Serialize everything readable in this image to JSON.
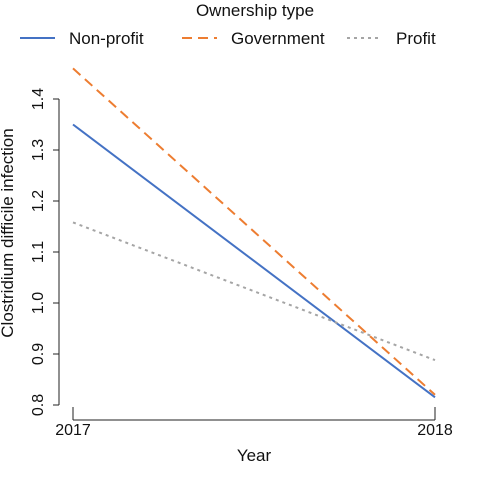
{
  "chart_data": {
    "type": "line",
    "title": "",
    "xlabel": "Year",
    "ylabel": "Clostridium difficile infection",
    "x": [
      "2017",
      "2018"
    ],
    "ylim": [
      0.8,
      1.45
    ],
    "yticks": [
      "0.8",
      "0.9",
      "1.0",
      "1.1",
      "1.2",
      "1.3",
      "1.4"
    ],
    "legend": {
      "title": "Ownership type",
      "position": "top"
    },
    "series": [
      {
        "name": "Non-profit",
        "values": [
          1.35,
          0.815
        ],
        "color": "#4472C4",
        "style": "solid"
      },
      {
        "name": "Government",
        "values": [
          1.46,
          0.82
        ],
        "color": "#ED7D31",
        "style": "dashed"
      },
      {
        "name": "Profit",
        "values": [
          1.158,
          0.888
        ],
        "color": "#A5A5A5",
        "style": "dotted"
      }
    ]
  }
}
